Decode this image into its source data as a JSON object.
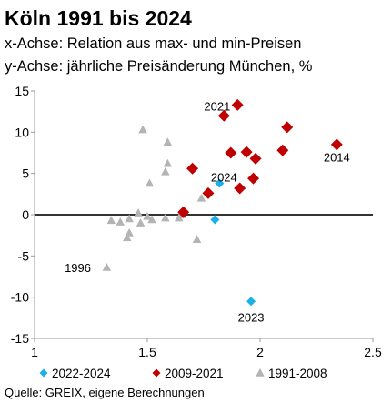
{
  "title": "Köln 1991 bis 2024",
  "subtitle_x": "x-Achse: Relation aus max- und min-Preisen",
  "subtitle_y": "y-Achse: jährliche Preisänderung München, %",
  "source": "Quelle: GREIX, eigene Berechnungen",
  "chart_data": {
    "type": "scatter",
    "xlim": [
      1,
      2.5
    ],
    "ylim": [
      -15,
      15
    ],
    "x_ticks": [
      "1",
      "1.5",
      "2",
      "2.5"
    ],
    "y_ticks": [
      "15",
      "10",
      "5",
      "0",
      "-5",
      "-10",
      "-15"
    ],
    "grid": false,
    "legend_position": "bottom",
    "series": [
      {
        "name": "2022-2024",
        "color": "#1ab0e8",
        "marker": "diamond",
        "points": [
          {
            "x": 1.82,
            "y": 3.8
          },
          {
            "x": 1.8,
            "y": -0.6
          },
          {
            "x": 1.96,
            "y": -10.5
          }
        ]
      },
      {
        "name": "2009-2021",
        "color": "#c00000",
        "marker": "diamond",
        "points": [
          {
            "x": 1.66,
            "y": 0.3
          },
          {
            "x": 1.7,
            "y": 5.6
          },
          {
            "x": 1.77,
            "y": 2.6
          },
          {
            "x": 1.84,
            "y": 12.0
          },
          {
            "x": 1.87,
            "y": 7.5
          },
          {
            "x": 1.9,
            "y": 13.3
          },
          {
            "x": 1.91,
            "y": 3.2
          },
          {
            "x": 1.94,
            "y": 7.6
          },
          {
            "x": 1.97,
            "y": 4.4
          },
          {
            "x": 1.98,
            "y": 6.8
          },
          {
            "x": 2.1,
            "y": 7.8
          },
          {
            "x": 2.12,
            "y": 10.6
          },
          {
            "x": 2.34,
            "y": 8.5
          }
        ]
      },
      {
        "name": "1991-2008",
        "color": "#b4b4b4",
        "marker": "triangle",
        "points": [
          {
            "x": 1.32,
            "y": -6.4
          },
          {
            "x": 1.34,
            "y": -0.7
          },
          {
            "x": 1.38,
            "y": -0.9
          },
          {
            "x": 1.41,
            "y": -2.8
          },
          {
            "x": 1.42,
            "y": -2.2
          },
          {
            "x": 1.42,
            "y": -0.5
          },
          {
            "x": 1.46,
            "y": 0.2
          },
          {
            "x": 1.47,
            "y": -1.0
          },
          {
            "x": 1.48,
            "y": 10.3
          },
          {
            "x": 1.5,
            "y": -0.2
          },
          {
            "x": 1.51,
            "y": 3.8
          },
          {
            "x": 1.52,
            "y": -0.6
          },
          {
            "x": 1.58,
            "y": -0.4
          },
          {
            "x": 1.58,
            "y": 5.2
          },
          {
            "x": 1.59,
            "y": 6.2
          },
          {
            "x": 1.59,
            "y": 8.8
          },
          {
            "x": 1.64,
            "y": -0.4
          },
          {
            "x": 1.65,
            "y": 0.0
          },
          {
            "x": 1.72,
            "y": -3.0
          },
          {
            "x": 1.74,
            "y": 2.0
          }
        ]
      }
    ],
    "annotations": [
      {
        "text": "2021",
        "x": 1.81,
        "y": 13.2,
        "anchor": "middle"
      },
      {
        "text": "2024",
        "x": 1.84,
        "y": 4.6,
        "anchor": "middle"
      },
      {
        "text": "2014",
        "x": 2.34,
        "y": 7.0,
        "anchor": "middle"
      },
      {
        "text": "1996",
        "x": 1.25,
        "y": -6.4,
        "anchor": "end"
      },
      {
        "text": "2023",
        "x": 1.96,
        "y": -12.4,
        "anchor": "middle"
      }
    ]
  }
}
